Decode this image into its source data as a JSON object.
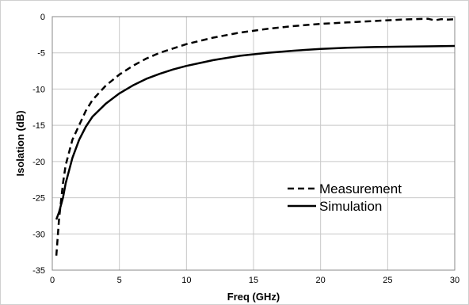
{
  "chart_data": {
    "type": "line",
    "xlabel": "Freq (GHz)",
    "ylabel": "Isolation (dB)",
    "xlim": [
      0,
      30
    ],
    "ylim": [
      -35,
      0
    ],
    "xticks": [
      0,
      5,
      10,
      15,
      20,
      25,
      30
    ],
    "yticks": [
      0,
      -5,
      -10,
      -15,
      -20,
      -25,
      -30,
      -35
    ],
    "grid": true,
    "legend_position": "right",
    "series": [
      {
        "name": "Measurement",
        "style": "dashed",
        "color": "#000000",
        "x": [
          0.3,
          0.5,
          0.8,
          1,
          1.5,
          2,
          2.5,
          3,
          4,
          5,
          6,
          7,
          8,
          9,
          10,
          12,
          14,
          16,
          18,
          20,
          22,
          24,
          26,
          27,
          28,
          28.5,
          29,
          29.5,
          30
        ],
        "y": [
          -33,
          -28,
          -23,
          -20.5,
          -17,
          -15,
          -13,
          -11.5,
          -9.5,
          -8,
          -6.8,
          -5.8,
          -5,
          -4.4,
          -3.8,
          -2.9,
          -2.2,
          -1.7,
          -1.3,
          -1,
          -0.8,
          -0.6,
          -0.4,
          -0.35,
          -0.3,
          -0.5,
          -0.35,
          -0.4,
          -0.35
        ]
      },
      {
        "name": "Simulation",
        "style": "solid",
        "color": "#000000",
        "x": [
          0.3,
          0.5,
          0.8,
          1,
          1.5,
          2,
          2.5,
          3,
          4,
          5,
          6,
          7,
          8,
          9,
          10,
          12,
          14,
          16,
          18,
          20,
          22,
          24,
          26,
          28,
          30
        ],
        "y": [
          -28,
          -27,
          -25,
          -23,
          -19.5,
          -17,
          -15.2,
          -13.8,
          -12,
          -10.6,
          -9.5,
          -8.6,
          -7.9,
          -7.3,
          -6.8,
          -6,
          -5.4,
          -5,
          -4.7,
          -4.45,
          -4.3,
          -4.2,
          -4.15,
          -4.1,
          -4.05
        ]
      }
    ]
  }
}
